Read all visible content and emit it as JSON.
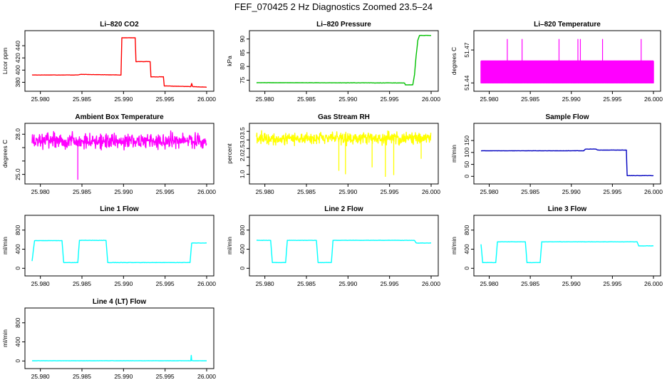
{
  "page": {
    "title": "FEF_070425  2 Hz Diagnostics Zoomed 23.5–24"
  },
  "chart_data": [
    {
      "type": "line",
      "title": "Li–820 CO2",
      "xlabel": "",
      "ylabel": "Licor ppm",
      "color": "#ff0000",
      "xlim": [
        25.979,
        26.0
      ],
      "ylim": [
        370,
        460
      ],
      "xticks": [
        25.98,
        25.985,
        25.99,
        25.995,
        26.0
      ],
      "xtick_labels": [
        "25.980",
        "25.985",
        "25.990",
        "25.995",
        "26.000"
      ],
      "yticks": [
        380,
        400,
        420,
        440
      ],
      "ytick_labels": [
        "380",
        "400",
        "420",
        "440"
      ],
      "series": [
        {
          "name": "CO2",
          "x": [
            25.979,
            25.9845,
            25.9848,
            25.9897,
            25.9898,
            25.9914,
            25.9915,
            25.9932,
            25.9933,
            25.9948,
            25.9949,
            25.9981,
            25.9982,
            25.9983,
            26.0
          ],
          "y": [
            392,
            392,
            393,
            392,
            453,
            453,
            414,
            414,
            389,
            389,
            374,
            373,
            378,
            373,
            372
          ]
        }
      ]
    },
    {
      "type": "line",
      "title": "Li–820 Pressure",
      "xlabel": "",
      "ylabel": "kPa",
      "color": "#00c000",
      "xlim": [
        25.979,
        26.0
      ],
      "ylim": [
        72,
        92
      ],
      "xticks": [
        25.98,
        25.985,
        25.99,
        25.995,
        26.0
      ],
      "xtick_labels": [
        "25.980",
        "25.985",
        "25.990",
        "25.995",
        "26.000"
      ],
      "yticks": [
        75,
        80,
        85,
        90
      ],
      "ytick_labels": [
        "75",
        "80",
        "85",
        "90"
      ],
      "series": [
        {
          "name": "Pressure",
          "x": [
            25.979,
            25.9968,
            25.9969,
            25.9978,
            25.998,
            25.9982,
            25.9984,
            25.9986,
            26.0
          ],
          "y": [
            74.1,
            74.0,
            73.3,
            73.3,
            77,
            84,
            89.5,
            91.3,
            91.3
          ]
        }
      ]
    },
    {
      "type": "line",
      "title": "Li–820 Temperature",
      "xlabel": "",
      "ylabel": "degrees C",
      "color": "#ff00ff",
      "xlim": [
        25.979,
        26.0
      ],
      "ylim": [
        51.435,
        51.485
      ],
      "xticks": [
        25.98,
        25.985,
        25.99,
        25.995,
        26.0
      ],
      "xtick_labels": [
        "25.980",
        "25.985",
        "25.990",
        "25.995",
        "26.000"
      ],
      "yticks": [
        51.44,
        51.47
      ],
      "ytick_labels": [
        "51.44",
        "51.47"
      ],
      "series": [
        {
          "name": "Temperature",
          "base": 51.44,
          "level": 51.46,
          "spike": 51.48,
          "spike_x": [
            25.9822,
            25.984,
            25.9885,
            25.9908,
            25.9911,
            25.9938,
            25.9985
          ]
        }
      ]
    },
    {
      "type": "line",
      "title": "Ambient Box Temperature",
      "xlabel": "",
      "ylabel": "degrees C",
      "color": "#ff00ff",
      "xlim": [
        25.979,
        26.0
      ],
      "ylim": [
        24.5,
        28.6
      ],
      "xticks": [
        25.98,
        25.985,
        25.99,
        25.995,
        26.0
      ],
      "xtick_labels": [
        "25.980",
        "25.985",
        "25.990",
        "25.995",
        "26.000"
      ],
      "yticks": [
        25.0,
        26.0,
        27.0,
        28.0
      ],
      "ytick_labels": [
        "25.0",
        "",
        "",
        "28.0"
      ],
      "series": [
        {
          "name": "Box temperature",
          "mean": 27.5,
          "noise": 0.55,
          "spike_x": [
            25.9845
          ],
          "spike_y": [
            24.6
          ]
        }
      ]
    },
    {
      "type": "line",
      "title": "Gas Stream RH",
      "xlabel": "",
      "ylabel": "percent",
      "color": "#ffff00",
      "xlim": [
        25.979,
        26.0
      ],
      "ylim": [
        0.6,
        3.8
      ],
      "xticks": [
        25.98,
        25.985,
        25.99,
        25.995,
        26.0
      ],
      "xtick_labels": [
        "25.980",
        "25.985",
        "25.990",
        "25.995",
        "26.000"
      ],
      "yticks": [
        1.0,
        1.5,
        2.0,
        2.5,
        3.0,
        3.5
      ],
      "ytick_labels": [
        "1.0",
        "",
        "2.0",
        "2.5",
        "3.0",
        "3.5"
      ],
      "series": [
        {
          "name": "RH",
          "mean": 3.1,
          "noise": 0.35,
          "spike_x": [
            25.9889,
            25.9897,
            25.9929,
            25.9945,
            25.9955,
            25.9988
          ],
          "spike_y": [
            1.2,
            1.0,
            1.4,
            0.85,
            0.95,
            1.9
          ]
        }
      ]
    },
    {
      "type": "line",
      "title": "Sample Flow",
      "xlabel": "",
      "ylabel": "ml/min",
      "color": "#0000c0",
      "xlim": [
        25.979,
        26.0
      ],
      "ylim": [
        -20,
        210
      ],
      "xticks": [
        25.98,
        25.985,
        25.99,
        25.995,
        26.0
      ],
      "xtick_labels": [
        "25.980",
        "25.985",
        "25.990",
        "25.995",
        "26.000"
      ],
      "yticks": [
        0,
        50,
        100,
        150
      ],
      "ytick_labels": [
        "0",
        "50",
        "100",
        "150"
      ],
      "series": [
        {
          "name": "Sample flow",
          "x": [
            25.979,
            25.9915,
            25.9917,
            25.993,
            25.9932,
            25.9967,
            25.9968,
            26.0
          ],
          "y": [
            107,
            107,
            114,
            114,
            110,
            110,
            3,
            3
          ]
        }
      ]
    },
    {
      "type": "line",
      "title": "Line 1 Flow",
      "xlabel": "",
      "ylabel": "ml/min",
      "color": "#00ffff",
      "xlim": [
        25.979,
        26.0
      ],
      "ylim": [
        -100,
        1050
      ],
      "xticks": [
        25.98,
        25.985,
        25.99,
        25.995,
        26.0
      ],
      "xtick_labels": [
        "25.980",
        "25.985",
        "25.990",
        "25.995",
        "26.000"
      ],
      "yticks": [
        0,
        400,
        800
      ],
      "ytick_labels": [
        "0",
        "400",
        "800"
      ],
      "series": [
        {
          "name": "Line 1",
          "x": [
            25.979,
            25.9793,
            25.9826,
            25.9828,
            25.9845,
            25.9847,
            25.9879,
            25.9881,
            25.998,
            25.9982,
            26.0
          ],
          "y": [
            150,
            580,
            580,
            120,
            120,
            585,
            585,
            120,
            120,
            530,
            530
          ]
        }
      ]
    },
    {
      "type": "line",
      "title": "Line 2 Flow",
      "xlabel": "",
      "ylabel": "ml/min",
      "color": "#00ffff",
      "xlim": [
        25.979,
        26.0
      ],
      "ylim": [
        -100,
        1050
      ],
      "xticks": [
        25.98,
        25.985,
        25.99,
        25.995,
        26.0
      ],
      "xtick_labels": [
        "25.980",
        "25.985",
        "25.990",
        "25.995",
        "26.000"
      ],
      "yticks": [
        0,
        400,
        800
      ],
      "ytick_labels": [
        "0",
        "400",
        "800"
      ],
      "series": [
        {
          "name": "Line 2",
          "x": [
            25.979,
            25.9807,
            25.9809,
            25.9825,
            25.9827,
            25.9862,
            25.9864,
            25.988,
            25.9882,
            25.998,
            25.9982,
            26.0
          ],
          "y": [
            585,
            585,
            120,
            120,
            585,
            585,
            120,
            120,
            585,
            585,
            530,
            530
          ]
        }
      ]
    },
    {
      "type": "line",
      "title": "Line 3 Flow",
      "xlabel": "",
      "ylabel": "ml/min",
      "color": "#00ffff",
      "xlim": [
        25.979,
        26.0
      ],
      "ylim": [
        -100,
        1050
      ],
      "xticks": [
        25.98,
        25.985,
        25.99,
        25.995,
        26.0
      ],
      "xtick_labels": [
        "25.980",
        "25.985",
        "25.990",
        "25.995",
        "26.000"
      ],
      "yticks": [
        0,
        400,
        800
      ],
      "ytick_labels": [
        "0",
        "400",
        "800"
      ],
      "series": [
        {
          "name": "Line 3",
          "x": [
            25.979,
            25.9792,
            25.9793,
            25.9808,
            25.981,
            25.9844,
            25.9846,
            25.9862,
            25.9864,
            25.998,
            25.9982,
            26.0
          ],
          "y": [
            500,
            120,
            120,
            120,
            555,
            555,
            120,
            120,
            555,
            555,
            470,
            470
          ]
        }
      ]
    },
    {
      "type": "line",
      "title": "Line 4 (LT) Flow",
      "xlabel": "",
      "ylabel": "ml/min",
      "color": "#00ffff",
      "xlim": [
        25.979,
        26.0
      ],
      "ylim": [
        -100,
        1050
      ],
      "xticks": [
        25.98,
        25.985,
        25.99,
        25.995,
        26.0
      ],
      "xtick_labels": [
        "25.980",
        "25.985",
        "25.990",
        "25.995",
        "26.000"
      ],
      "yticks": [
        0,
        400,
        800
      ],
      "ytick_labels": [
        "0",
        "400",
        "800"
      ],
      "series": [
        {
          "name": "Line 4",
          "x": [
            25.979,
            25.9981,
            25.99815,
            25.9982,
            26.0
          ],
          "y": [
            5,
            5,
            120,
            5,
            5
          ]
        }
      ]
    }
  ]
}
